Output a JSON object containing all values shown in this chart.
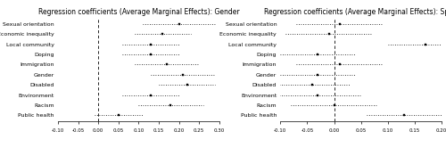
{
  "title_left": "Regression coefficients (Average Marginal Effects): Gender",
  "title_right": "Regression coefficients (Average Marginal Effects): Sport",
  "categories": [
    "Sexual orientation",
    "Economic inequality",
    "Local community",
    "Doping",
    "Immigration",
    "Gender",
    "Disabled",
    "Environment",
    "Racism",
    "Public health"
  ],
  "gender_coef": [
    0.2,
    0.16,
    0.13,
    0.13,
    0.17,
    0.21,
    0.22,
    0.13,
    0.18,
    0.05
  ],
  "gender_lo": [
    0.11,
    0.09,
    0.06,
    0.06,
    0.09,
    0.13,
    0.15,
    0.06,
    0.1,
    -0.01
  ],
  "gender_hi": [
    0.29,
    0.23,
    0.2,
    0.2,
    0.25,
    0.29,
    0.29,
    0.2,
    0.26,
    0.11
  ],
  "gender_xlim": [
    -0.1,
    0.3
  ],
  "gender_xticks": [
    -0.1,
    -0.05,
    0.0,
    0.05,
    0.1,
    0.15,
    0.2,
    0.25,
    0.3
  ],
  "sport_coef": [
    0.01,
    -0.01,
    0.17,
    -0.03,
    0.01,
    -0.03,
    -0.04,
    -0.03,
    0.0,
    0.13
  ],
  "sport_lo": [
    -0.07,
    -0.09,
    0.1,
    -0.1,
    -0.07,
    -0.1,
    -0.11,
    -0.11,
    -0.08,
    0.06
  ],
  "sport_hi": [
    0.09,
    0.07,
    0.24,
    0.04,
    0.09,
    0.04,
    0.03,
    0.05,
    0.08,
    0.2
  ],
  "sport_xlim": [
    -0.1,
    0.2
  ],
  "sport_xticks": [
    -0.1,
    -0.05,
    0.0,
    0.05,
    0.1,
    0.15,
    0.2
  ],
  "dot_color": "black",
  "line_color": "black",
  "vline_color": "black",
  "title_fontsize": 5.5,
  "label_fontsize": 4.5,
  "tick_fontsize": 4.0
}
